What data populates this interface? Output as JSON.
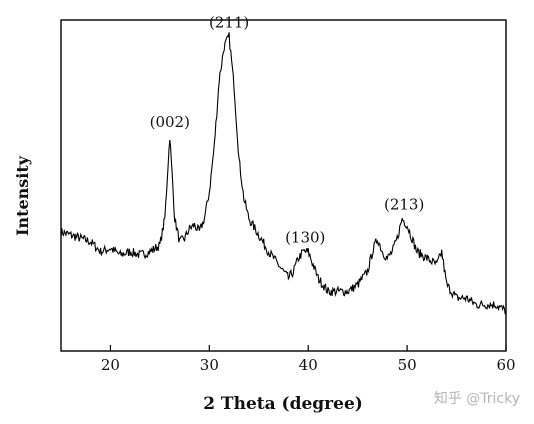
{
  "chart_data": {
    "type": "line",
    "title": "",
    "xlabel": "2 Theta (degree)",
    "ylabel": "Intensity",
    "xlim": [
      15,
      60
    ],
    "ylim": [
      0,
      100
    ],
    "x_ticks": [
      20,
      30,
      40,
      50,
      60
    ],
    "grid": false,
    "legend": "none",
    "line_color": "#000000",
    "series": [
      {
        "x": [
          15,
          16,
          17,
          18,
          19,
          20,
          21,
          22,
          23,
          24,
          25,
          25.5,
          26,
          26.5,
          27,
          27.5,
          28,
          28.5,
          29,
          29.5,
          30,
          30.5,
          31,
          31.5,
          32,
          32.5,
          33,
          33.5,
          34,
          35,
          36,
          37,
          38,
          38.5,
          39,
          39.5,
          40,
          40.5,
          41,
          42,
          43,
          44,
          45,
          46,
          46.5,
          47,
          47.5,
          48,
          48.5,
          49,
          49.5,
          50,
          50.5,
          51,
          52,
          53,
          53.5,
          54,
          55,
          56,
          57,
          58,
          59,
          60
        ],
        "y": [
          36,
          35,
          34,
          33,
          30,
          31,
          29,
          30,
          29,
          30,
          32,
          40,
          65,
          40,
          33,
          34,
          37,
          38,
          36,
          40,
          48,
          62,
          82,
          92,
          95,
          80,
          58,
          46,
          40,
          35,
          30,
          26,
          22,
          24,
          28,
          30,
          30,
          26,
          22,
          18,
          18,
          18,
          20,
          24,
          30,
          34,
          30,
          28,
          30,
          34,
          40,
          38,
          34,
          30,
          28,
          26,
          30,
          20,
          16,
          16,
          14,
          14,
          14,
          12
        ]
      }
    ],
    "annotations": [
      {
        "text": "(002)",
        "x": 26,
        "y": 65
      },
      {
        "text": "(211)",
        "x": 32,
        "y": 95
      },
      {
        "text": "(130)",
        "x": 39.7,
        "y": 30
      },
      {
        "text": "(213)",
        "x": 49.7,
        "y": 40
      }
    ]
  },
  "watermark": "知乎 @Tricky"
}
